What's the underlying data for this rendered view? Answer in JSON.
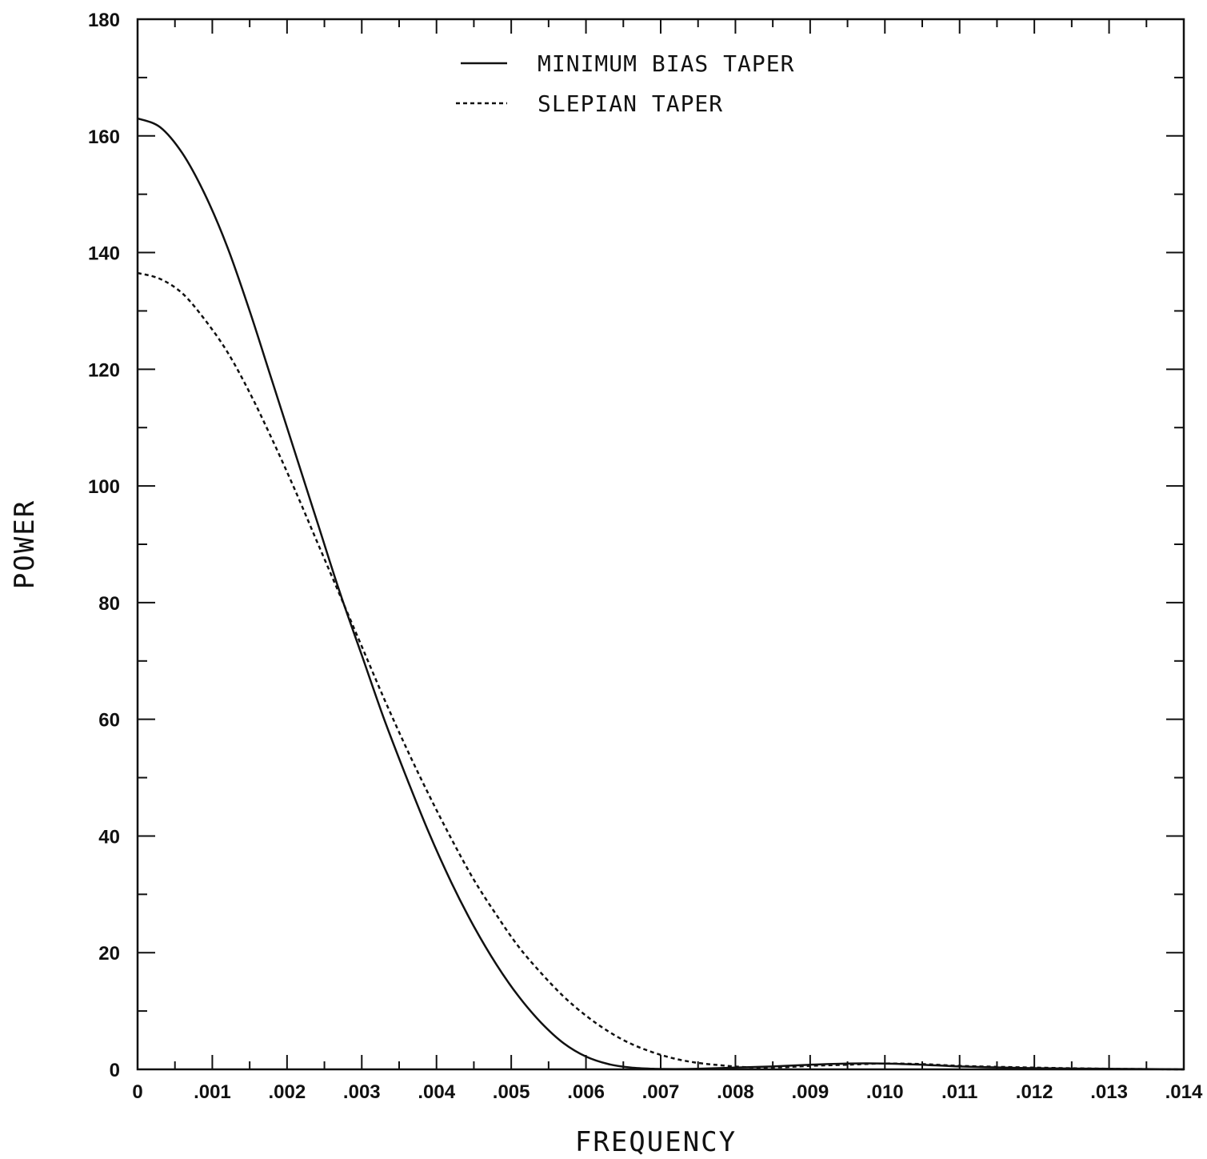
{
  "chart_data": {
    "type": "line",
    "xlabel": "FREQUENCY",
    "ylabel": "POWER",
    "xlim": [
      0,
      0.014
    ],
    "ylim": [
      0,
      180
    ],
    "x_ticks": [
      {
        "value": 0,
        "label": "0"
      },
      {
        "value": 0.001,
        "label": ".001"
      },
      {
        "value": 0.002,
        "label": ".002"
      },
      {
        "value": 0.003,
        "label": ".003"
      },
      {
        "value": 0.004,
        "label": ".004"
      },
      {
        "value": 0.005,
        "label": ".005"
      },
      {
        "value": 0.006,
        "label": ".006"
      },
      {
        "value": 0.007,
        "label": ".007"
      },
      {
        "value": 0.008,
        "label": ".008"
      },
      {
        "value": 0.009,
        "label": ".009"
      },
      {
        "value": 0.01,
        "label": ".010"
      },
      {
        "value": 0.011,
        "label": ".011"
      },
      {
        "value": 0.012,
        "label": ".012"
      },
      {
        "value": 0.013,
        "label": ".013"
      },
      {
        "value": 0.014,
        "label": ".014"
      }
    ],
    "y_ticks": [
      {
        "value": 0,
        "label": "0"
      },
      {
        "value": 20,
        "label": "20"
      },
      {
        "value": 40,
        "label": "40"
      },
      {
        "value": 60,
        "label": "60"
      },
      {
        "value": 80,
        "label": "80"
      },
      {
        "value": 100,
        "label": "100"
      },
      {
        "value": 120,
        "label": "120"
      },
      {
        "value": 140,
        "label": "140"
      },
      {
        "value": 160,
        "label": "160"
      },
      {
        "value": 180,
        "label": "180"
      }
    ],
    "legend_position": "top-center",
    "grid": false,
    "series": [
      {
        "name": "MINIMUM BIAS TAPER",
        "style": "solid",
        "color": "#111111",
        "x": [
          0,
          0.0003,
          0.0006,
          0.0009,
          0.0012,
          0.0015,
          0.0018,
          0.0021,
          0.0024,
          0.0027,
          0.003,
          0.0033,
          0.0036,
          0.0039,
          0.0042,
          0.0045,
          0.0048,
          0.0051,
          0.0054,
          0.0057,
          0.006,
          0.0063,
          0.0066,
          0.0069,
          0.0072,
          0.0075,
          0.008,
          0.0085,
          0.009,
          0.0095,
          0.01,
          0.0105,
          0.011,
          0.012,
          0.013,
          0.014
        ],
        "y": [
          163,
          161.5,
          157,
          150,
          141,
          130,
          118,
          106,
          94,
          82,
          71,
          60,
          50,
          40.5,
          32,
          24.5,
          18,
          12.5,
          8,
          4.5,
          2.2,
          0.9,
          0.3,
          0.1,
          0.05,
          0.1,
          0.3,
          0.5,
          0.8,
          1.0,
          1.0,
          0.8,
          0.5,
          0.2,
          0.1,
          0.0
        ]
      },
      {
        "name": "SLEPIAN TAPER",
        "style": "dashed",
        "color": "#111111",
        "x": [
          0,
          0.0003,
          0.0006,
          0.0009,
          0.0012,
          0.0015,
          0.0018,
          0.0021,
          0.0024,
          0.0027,
          0.003,
          0.0033,
          0.0036,
          0.0039,
          0.0042,
          0.0045,
          0.0048,
          0.0051,
          0.0054,
          0.0057,
          0.006,
          0.0063,
          0.0066,
          0.0069,
          0.0072,
          0.0075,
          0.0078,
          0.0081,
          0.0084,
          0.0087,
          0.009,
          0.0095,
          0.01,
          0.0105,
          0.011,
          0.012,
          0.013,
          0.014
        ],
        "y": [
          136.5,
          135.5,
          133,
          128.5,
          123,
          116,
          108,
          99.5,
          90.5,
          81.5,
          72.5,
          63.5,
          55,
          47,
          39.5,
          32.5,
          26.5,
          21,
          16.5,
          12.5,
          9.2,
          6.5,
          4.4,
          2.9,
          1.8,
          1.1,
          0.7,
          0.4,
          0.3,
          0.4,
          0.6,
          0.8,
          1.0,
          0.9,
          0.6,
          0.3,
          0.1,
          0.0
        ]
      }
    ]
  }
}
